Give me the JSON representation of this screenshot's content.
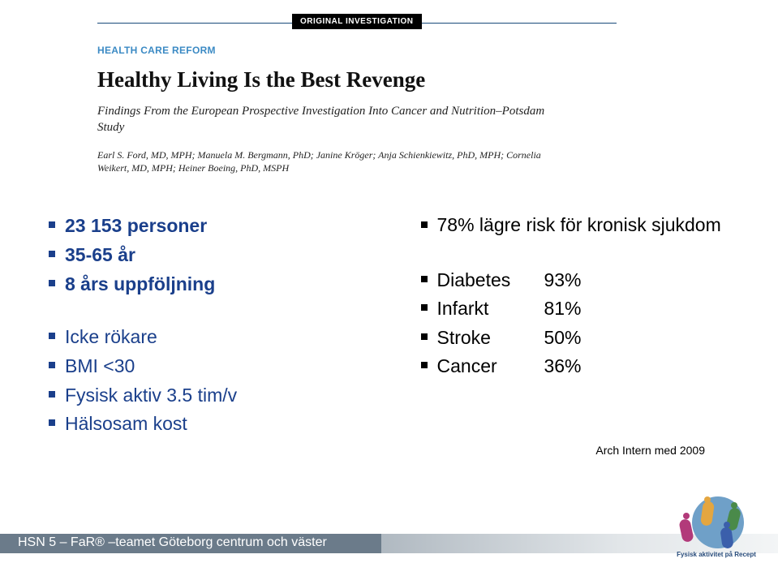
{
  "header": {
    "badge": "ORIGINAL INVESTIGATION",
    "reform_label": "HEALTH CARE REFORM",
    "title": "Healthy Living Is the Best Revenge",
    "subtitle": "Findings From the European Prospective Investigation Into Cancer and Nutrition–Potsdam Study",
    "authors": "Earl S. Ford, MD, MPH; Manuela M. Bergmann, PhD; Janine Kröger; Anja Schienkiewitz, PhD, MPH; Cornelia Weikert, MD, MPH; Heiner Boeing, PhD, MSPH"
  },
  "left_top": [
    "23 153 personer",
    "35-65 år",
    "8 års uppföljning"
  ],
  "left_bottom": [
    "Icke rökare",
    "BMI <30",
    "Fysisk aktiv 3.5 tim/v",
    "Hälsosam kost"
  ],
  "right_top": [
    "78% lägre risk för kronisk sjukdom"
  ],
  "right_bottom": [
    {
      "label": "Diabetes",
      "pct": "93%"
    },
    {
      "label": "Infarkt",
      "pct": "81%"
    },
    {
      "label": "Stroke",
      "pct": "50%"
    },
    {
      "label": "Cancer",
      "pct": "36%"
    }
  ],
  "citation": "Arch Intern med 2009",
  "footer": {
    "text": "HSN 5 – FaR® –teamet Göteborg centrum och väster",
    "logo_caption": "Fysisk aktivitet på Recept"
  },
  "colors": {
    "rule": "#184a7a",
    "reform": "#3b8ac4",
    "accent_left": "#1a3f8b",
    "footer_bar": "#6b7b8a"
  }
}
